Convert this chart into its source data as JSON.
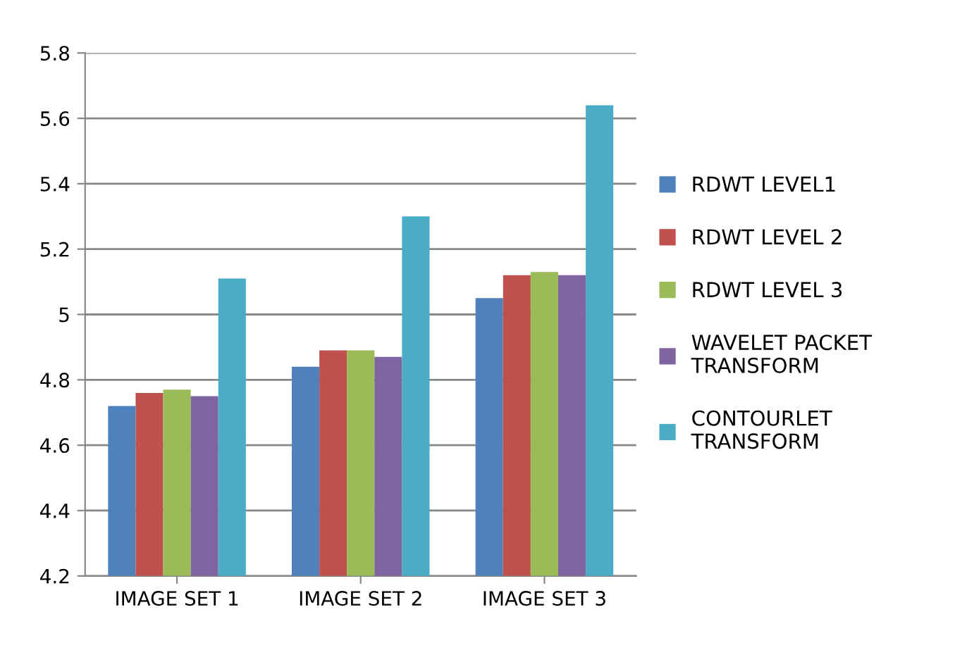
{
  "chart_data": {
    "type": "bar",
    "categories": [
      "IMAGE SET 1",
      "IMAGE SET 2",
      "IMAGE SET 3"
    ],
    "series": [
      {
        "name": "RDWT LEVEL1",
        "color": "#4f81bd",
        "values": [
          4.72,
          4.84,
          5.05
        ]
      },
      {
        "name": "RDWT LEVEL 2",
        "color": "#c0504d",
        "values": [
          4.76,
          4.89,
          5.12
        ]
      },
      {
        "name": "RDWT LEVEL 3",
        "color": "#9bbb59",
        "values": [
          4.77,
          4.89,
          5.13
        ]
      },
      {
        "name": "WAVELET PACKET\nTRANSFORM",
        "color": "#8064a2",
        "values": [
          4.75,
          4.87,
          5.12
        ]
      },
      {
        "name": "CONTOURLET\nTRANSFORM",
        "color": "#4bacc6",
        "values": [
          5.11,
          5.3,
          5.64
        ]
      }
    ],
    "ylim": [
      4.2,
      5.8
    ],
    "yticks": [
      4.2,
      4.4,
      4.6,
      4.8,
      5,
      5.2,
      5.4,
      5.6,
      5.8
    ],
    "grid": "y",
    "legend": "right"
  }
}
